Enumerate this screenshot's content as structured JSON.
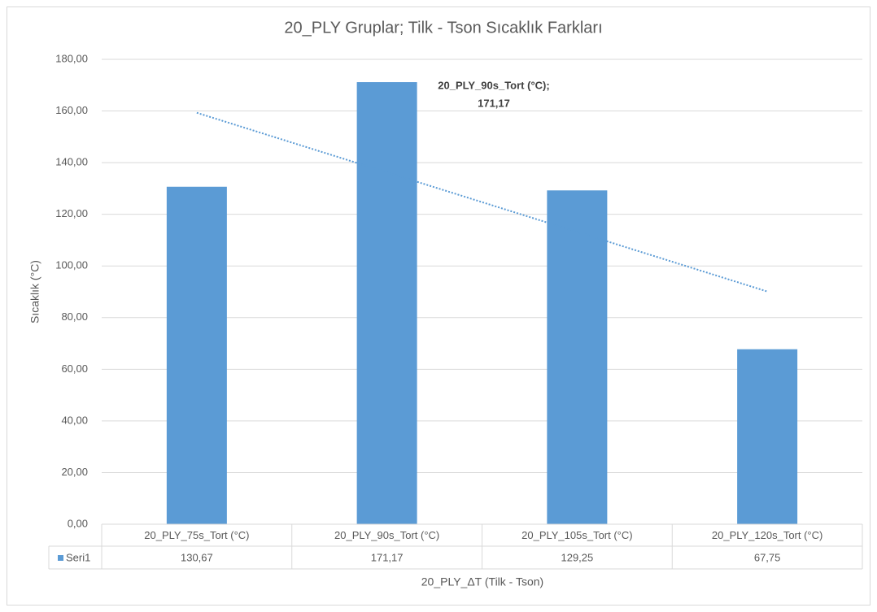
{
  "chart_data": {
    "type": "bar",
    "title": "20_PLY Gruplar; Tilk - Tson Sıcaklık Farkları",
    "y_label": "Sıcaklık (°C)",
    "x_label": "20_PLY_ΔT (Tilk - Tson)",
    "categories": [
      "20_PLY_75s_Tort (°C)",
      "20_PLY_90s_Tort (°C)",
      "20_PLY_105s_Tort (°C)",
      "20_PLY_120s_Tort (°C)"
    ],
    "series": [
      {
        "name": "Seri1",
        "color": "#5b9bd5",
        "values": [
          130.67,
          171.17,
          129.25,
          67.75
        ],
        "value_labels": [
          "130,67",
          "171,17",
          "129,25",
          "67,75"
        ]
      }
    ],
    "annotations": [
      {
        "lines": [
          "20_PLY_90s_Tort (°C);",
          "171,17"
        ]
      }
    ],
    "ylim": [
      0,
      180
    ],
    "yticks": [
      {
        "value": 0,
        "label": "0,00"
      },
      {
        "value": 20,
        "label": "20,00"
      },
      {
        "value": 40,
        "label": "40,00"
      },
      {
        "value": 60,
        "label": "60,00"
      },
      {
        "value": 80,
        "label": "80,00"
      },
      {
        "value": 100,
        "label": "100,00"
      },
      {
        "value": 120,
        "label": "120,00"
      },
      {
        "value": 140,
        "label": "140,00"
      },
      {
        "value": 160,
        "label": "160,00"
      },
      {
        "value": 180,
        "label": "180,00"
      }
    ],
    "grid": true,
    "trendline": "linear",
    "data_table": true
  }
}
